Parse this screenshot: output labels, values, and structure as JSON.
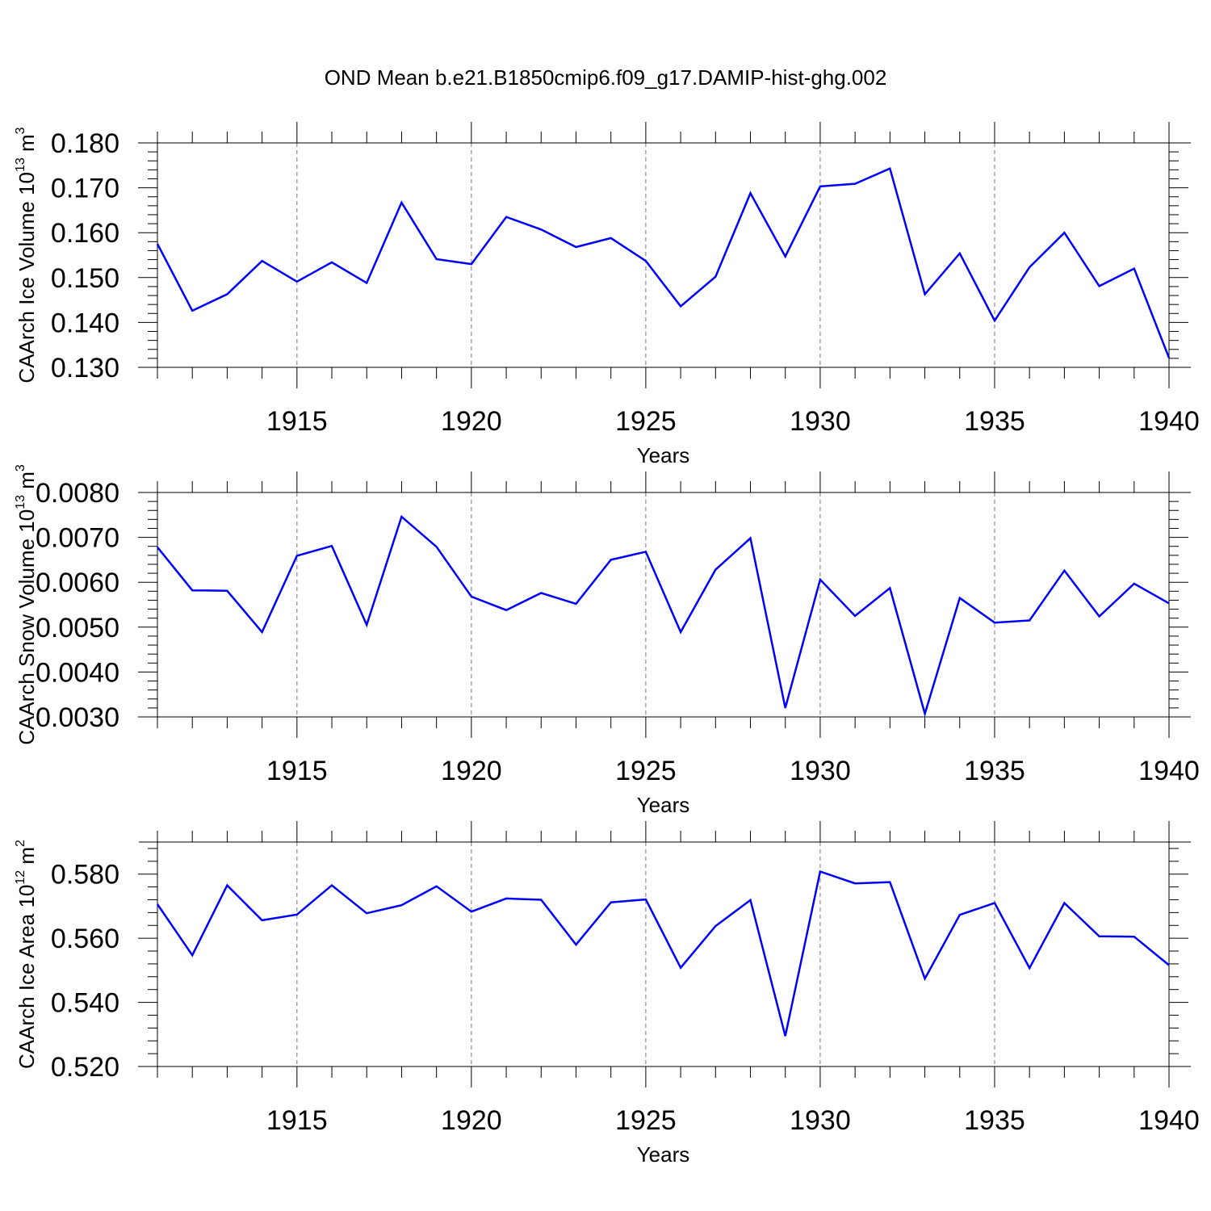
{
  "title": "OND Mean b.e21.B1850cmip6.f09_g17.DAMIP-hist-ghg.002",
  "line_color": "#0000ff",
  "chart_data": [
    {
      "type": "line",
      "xlabel": "Years",
      "ylabel_main": "CAArch Ice Volume 10",
      "ylabel_exp": "13",
      "ylabel_unit": " m",
      "ylabel_unit_exp": "3",
      "xlim": [
        1911,
        1940
      ],
      "ylim": [
        0.13,
        0.18
      ],
      "x_ticks": [
        "1915",
        "1920",
        "1925",
        "1930",
        "1935",
        "1940"
      ],
      "y_ticks": [
        "0.130",
        "0.140",
        "0.150",
        "0.160",
        "0.170",
        "0.180"
      ],
      "x": [
        1911,
        1912,
        1913,
        1914,
        1915,
        1916,
        1917,
        1918,
        1919,
        1920,
        1921,
        1922,
        1923,
        1924,
        1925,
        1926,
        1927,
        1928,
        1929,
        1930,
        1931,
        1932,
        1933,
        1934,
        1935,
        1936,
        1937,
        1938,
        1939,
        1940
      ],
      "series": [
        {
          "values": [
            0.1575,
            0.1426,
            0.1463,
            0.1537,
            0.1491,
            0.1534,
            0.1488,
            0.1667,
            0.1541,
            0.153,
            0.1635,
            0.1607,
            0.1568,
            0.1588,
            0.1537,
            0.1436,
            0.1502,
            0.1688,
            0.1547,
            0.1703,
            0.1709,
            0.1743,
            0.1463,
            0.1554,
            0.1404,
            0.1523,
            0.16,
            0.1481,
            0.152,
            0.1321
          ]
        }
      ]
    },
    {
      "type": "line",
      "xlabel": "Years",
      "ylabel_main": "CAArch Snow Volume 10",
      "ylabel_exp": "13",
      "ylabel_unit": " m",
      "ylabel_unit_exp": "3",
      "xlim": [
        1911,
        1940
      ],
      "ylim": [
        0.003,
        0.008
      ],
      "x_ticks": [
        "1915",
        "1920",
        "1925",
        "1930",
        "1935",
        "1940"
      ],
      "y_ticks": [
        "0.0030",
        "0.0040",
        "0.0050",
        "0.0060",
        "0.0070",
        "0.0080"
      ],
      "x": [
        1911,
        1912,
        1913,
        1914,
        1915,
        1916,
        1917,
        1918,
        1919,
        1920,
        1921,
        1922,
        1923,
        1924,
        1925,
        1926,
        1927,
        1928,
        1929,
        1930,
        1931,
        1932,
        1933,
        1934,
        1935,
        1936,
        1937,
        1938,
        1939,
        1940
      ],
      "series": [
        {
          "values": [
            0.00678,
            0.00582,
            0.00581,
            0.00489,
            0.00659,
            0.00681,
            0.00505,
            0.00746,
            0.00679,
            0.00568,
            0.00538,
            0.00576,
            0.00552,
            0.0065,
            0.00668,
            0.00489,
            0.00628,
            0.00698,
            0.0032,
            0.00606,
            0.00525,
            0.00587,
            0.00307,
            0.00565,
            0.0051,
            0.00515,
            0.00626,
            0.00524,
            0.00597,
            0.00553
          ]
        }
      ]
    },
    {
      "type": "line",
      "xlabel": "Years",
      "ylabel_main": "CAArch Ice Area 10",
      "ylabel_exp": "12",
      "ylabel_unit": " m",
      "ylabel_unit_exp": "2",
      "xlim": [
        1911,
        1940
      ],
      "ylim": [
        0.52,
        0.59
      ],
      "x_ticks": [
        "1915",
        "1920",
        "1925",
        "1930",
        "1935",
        "1940"
      ],
      "y_ticks": [
        "0.520",
        "0.540",
        "0.560",
        "0.580"
      ],
      "x": [
        1911,
        1912,
        1913,
        1914,
        1915,
        1916,
        1917,
        1918,
        1919,
        1920,
        1921,
        1922,
        1923,
        1924,
        1925,
        1926,
        1927,
        1928,
        1929,
        1930,
        1931,
        1932,
        1933,
        1934,
        1935,
        1936,
        1937,
        1938,
        1939,
        1940
      ],
      "series": [
        {
          "values": [
            0.5706,
            0.5547,
            0.5765,
            0.5656,
            0.5674,
            0.5765,
            0.5678,
            0.5703,
            0.5762,
            0.5683,
            0.5724,
            0.572,
            0.558,
            0.5712,
            0.5721,
            0.5508,
            0.5638,
            0.5719,
            0.5295,
            0.5808,
            0.5771,
            0.5775,
            0.5474,
            0.5673,
            0.571,
            0.5507,
            0.571,
            0.5606,
            0.5605,
            0.5516
          ]
        }
      ]
    }
  ]
}
